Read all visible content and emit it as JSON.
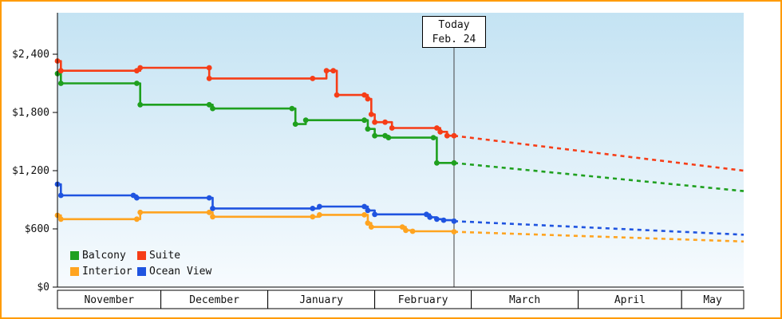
{
  "chart_data": {
    "type": "line",
    "description": "Cabin price history step chart with dotted price forecasts after today",
    "y_axis": {
      "max": 2400,
      "ticks": [
        {
          "value": 0,
          "label": "$0"
        },
        {
          "value": 600,
          "label": "$600"
        },
        {
          "value": 1200,
          "label": "$1,200"
        },
        {
          "value": 1800,
          "label": "$1,800"
        },
        {
          "value": 2400,
          "label": "$2,400"
        }
      ]
    },
    "x_axis": {
      "total_days": 199,
      "months": [
        {
          "label": "November",
          "days": 30
        },
        {
          "label": "December",
          "days": 31
        },
        {
          "label": "January",
          "days": 31
        },
        {
          "label": "February",
          "days": 28
        },
        {
          "label": "March",
          "days": 31
        },
        {
          "label": "April",
          "days": 30
        },
        {
          "label": "May",
          "days": 18
        }
      ]
    },
    "today": {
      "label": "Today",
      "date": "Feb. 24",
      "day": 115
    },
    "series": [
      {
        "name": "Balcony",
        "color": "#1fa01f",
        "points": [
          [
            0,
            2200
          ],
          [
            1,
            2100
          ],
          [
            23,
            2100
          ],
          [
            24,
            1880
          ],
          [
            44,
            1880
          ],
          [
            45,
            1840
          ],
          [
            68,
            1840
          ],
          [
            69,
            1680
          ],
          [
            72,
            1720
          ],
          [
            89,
            1720
          ],
          [
            90,
            1630
          ],
          [
            92,
            1560
          ],
          [
            95,
            1560
          ],
          [
            96,
            1540
          ],
          [
            109,
            1540
          ],
          [
            110,
            1280
          ],
          [
            115,
            1280
          ]
        ],
        "forecast": [
          [
            115,
            1280
          ],
          [
            199,
            990
          ]
        ]
      },
      {
        "name": "Suite",
        "color": "#f63d17",
        "points": [
          [
            0,
            2330
          ],
          [
            1,
            2230
          ],
          [
            23,
            2230
          ],
          [
            24,
            2260
          ],
          [
            44,
            2260
          ],
          [
            44,
            2150
          ],
          [
            74,
            2150
          ],
          [
            78,
            2230
          ],
          [
            80,
            2230
          ],
          [
            81,
            1980
          ],
          [
            89,
            1980
          ],
          [
            90,
            1940
          ],
          [
            91,
            1780
          ],
          [
            92,
            1700
          ],
          [
            95,
            1700
          ],
          [
            97,
            1640
          ],
          [
            110,
            1640
          ],
          [
            111,
            1600
          ],
          [
            113,
            1560
          ],
          [
            115,
            1560
          ]
        ],
        "forecast": [
          [
            115,
            1560
          ],
          [
            199,
            1200
          ]
        ]
      },
      {
        "name": "Interior",
        "color": "#ffa420",
        "points": [
          [
            0,
            740
          ],
          [
            1,
            700
          ],
          [
            23,
            700
          ],
          [
            24,
            770
          ],
          [
            44,
            770
          ],
          [
            45,
            725
          ],
          [
            74,
            725
          ],
          [
            76,
            745
          ],
          [
            89,
            745
          ],
          [
            90,
            660
          ],
          [
            91,
            620
          ],
          [
            100,
            620
          ],
          [
            101,
            585
          ],
          [
            103,
            575
          ],
          [
            115,
            570
          ]
        ],
        "forecast": [
          [
            115,
            570
          ],
          [
            199,
            470
          ]
        ]
      },
      {
        "name": "Ocean View",
        "color": "#1f54e0",
        "points": [
          [
            0,
            1060
          ],
          [
            1,
            945
          ],
          [
            22,
            945
          ],
          [
            23,
            920
          ],
          [
            44,
            920
          ],
          [
            45,
            810
          ],
          [
            74,
            810
          ],
          [
            76,
            830
          ],
          [
            89,
            830
          ],
          [
            90,
            790
          ],
          [
            92,
            750
          ],
          [
            107,
            750
          ],
          [
            108,
            720
          ],
          [
            110,
            700
          ],
          [
            112,
            690
          ],
          [
            115,
            680
          ]
        ],
        "forecast": [
          [
            115,
            680
          ],
          [
            199,
            540
          ]
        ]
      }
    ],
    "legend": [
      {
        "label": "Balcony",
        "color": "#1fa01f"
      },
      {
        "label": "Suite",
        "color": "#f63d17"
      },
      {
        "label": "Interior",
        "color": "#ffa420"
      },
      {
        "label": "Ocean View",
        "color": "#1f54e0"
      }
    ]
  }
}
